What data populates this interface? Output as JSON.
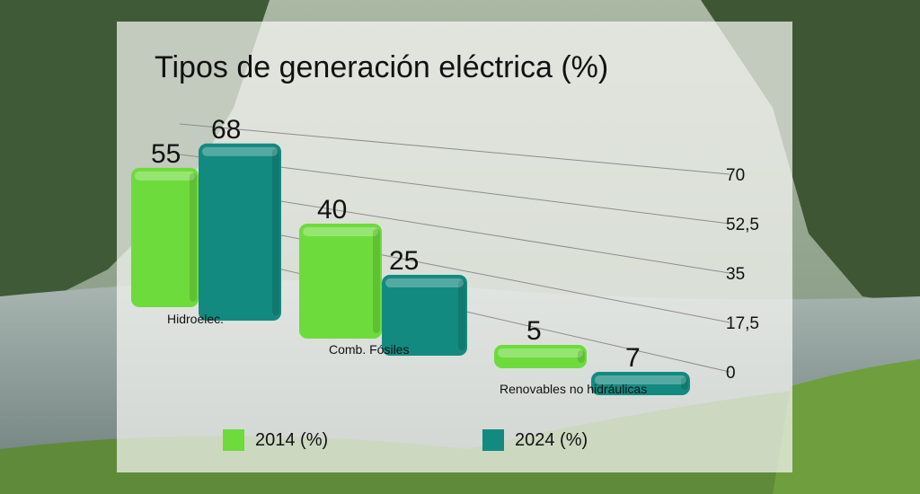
{
  "chart_data": {
    "type": "bar",
    "title": "Tipos de generación eléctrica (%)",
    "categories": [
      "Hidroelec.",
      "Comb. Fósiles",
      "Renovables no hidráulicas"
    ],
    "series": [
      {
        "name": "2014 (%)",
        "values": [
          55,
          40,
          5
        ],
        "color": "#6edb3c"
      },
      {
        "name": "2024 (%)",
        "values": [
          68,
          25,
          7
        ],
        "color": "#138a80"
      }
    ],
    "yticks": [
      "0",
      "17,5",
      "35",
      "52,5",
      "70"
    ],
    "ylim": [
      0,
      70
    ],
    "grid": true,
    "legend": "bottom"
  }
}
